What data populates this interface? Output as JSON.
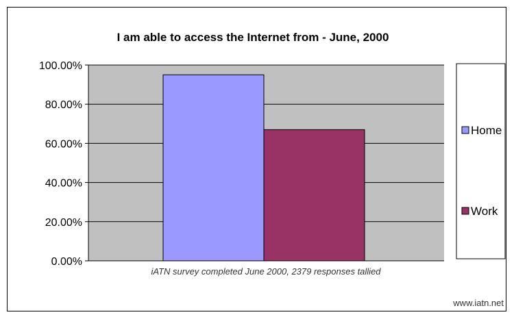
{
  "chart_data": {
    "type": "bar",
    "title": "I am able to access the Internet from - June, 2000",
    "xlabel": "",
    "ylabel": "",
    "ylim": [
      0,
      100
    ],
    "yticks": [
      "0.00%",
      "20.00%",
      "40.00%",
      "60.00%",
      "80.00%",
      "100.00%"
    ],
    "ytick_values": [
      0,
      20,
      40,
      60,
      80,
      100
    ],
    "grid": true,
    "legend_position": "right",
    "series": [
      {
        "name": "Home",
        "values": [
          95
        ],
        "color": "#9999ff"
      },
      {
        "name": "Work",
        "values": [
          67
        ],
        "color": "#993366"
      }
    ],
    "annotation": "iATN survey completed June 2000, 2379 responses tallied",
    "plot_background": "#c0c0c0"
  },
  "footer": {
    "source": "www.iatn.net"
  }
}
